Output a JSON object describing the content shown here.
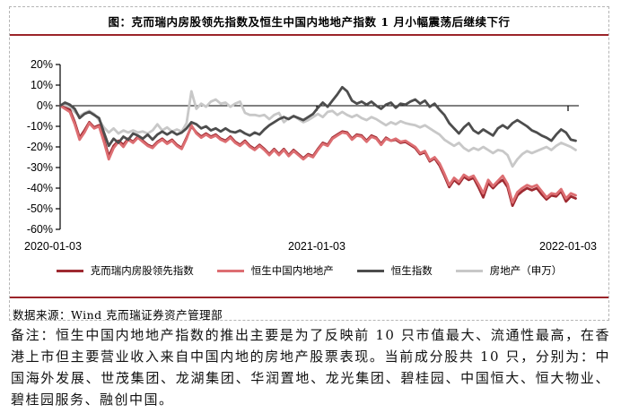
{
  "title": "图：克而瑞内房股领先指数及恒生中国内地地产指数 1 月小幅震荡后继续下行",
  "source_line": "数据来源：Wind 克而瑞证券资产管理部",
  "notes": "备注：恒生中国内地地产指数的推出主要是为了反映前 10 只市值最大、流通性最高，在香港上市但主要营业收入来自中国内地的房地产股票表现。当前成分股共 10 只，分别为：中国海外发展、世茂集团、龙湖集团、华润置地、龙光集团、碧桂园、中国恒大、恒大物业、碧桂园服务、融创中国。",
  "colors": {
    "accent_rule": "#9b2429",
    "cric_red": "#9e2a31",
    "hs_mainland_pink": "#dd6e72",
    "hsi_gray": "#4d4d4d",
    "sw_lightgray": "#c8c8c8",
    "axis": "#000000",
    "border_dashed": "#b5b5b5"
  },
  "chart_data": {
    "type": "line",
    "frequency": "weekly",
    "x_start": "2020-01-03",
    "x_end": "2022-01-03",
    "x_tick_labels": [
      "2020-01-03",
      "2021-01-03",
      "2022-01-03"
    ],
    "y_tick_labels": [
      "20%",
      "10%",
      "0%",
      "-10%",
      "-20%",
      "-30%",
      "-40%",
      "-50%",
      "-60%"
    ],
    "ylim": [
      -60,
      20
    ],
    "y_unit": "%",
    "grid": false,
    "legend_position": "bottom",
    "series": [
      {
        "name": "克而瑞内房股领先指数",
        "color": "#9e2a31",
        "values": [
          0,
          -1,
          -2,
          -8,
          -15.5,
          -12,
          -8,
          -10.5,
          -9.5,
          -16.5,
          -24.5,
          -19.5,
          -17,
          -19,
          -16,
          -17.5,
          -15,
          -17,
          -19,
          -20,
          -17.5,
          -16,
          -18,
          -16.5,
          -19,
          -20.5,
          -15.5,
          -10,
          -13,
          -15,
          -13.5,
          -15,
          -14,
          -16,
          -17,
          -15,
          -17.5,
          -19,
          -17,
          -19.5,
          -21,
          -19,
          -21,
          -23.5,
          -21,
          -23.5,
          -21,
          -24,
          -21.5,
          -23.5,
          -25.5,
          -23.5,
          -24.5,
          -21,
          -18,
          -19,
          -15.5,
          -14,
          -12.5,
          -13,
          -16,
          -14,
          -14.5,
          -17,
          -14.5,
          -15.5,
          -18.5,
          -15.5,
          -17,
          -16.5,
          -18,
          -17.5,
          -19,
          -20.5,
          -23.5,
          -22.5,
          -27,
          -25.5,
          -29,
          -34,
          -39.5,
          -36,
          -38,
          -34.5,
          -36,
          -35,
          -39.5,
          -44.5,
          -37.5,
          -40,
          -37.5,
          -36,
          -39.5,
          -48.5,
          -43.5,
          -41.5,
          -40,
          -41,
          -40,
          -43,
          -45.5,
          -43.5,
          -44,
          -41.5,
          -46.5,
          -44,
          -45
        ]
      },
      {
        "name": "恒生中国内地地产",
        "color": "#dd6e72",
        "values": [
          0,
          -1.5,
          -3,
          -9,
          -16.5,
          -13,
          -8.5,
          -11,
          -10,
          -17.5,
          -26,
          -20.5,
          -17.5,
          -20,
          -16.5,
          -18,
          -15.5,
          -17.5,
          -19.5,
          -20.5,
          -18,
          -16.5,
          -18.5,
          -17,
          -19.5,
          -21,
          -16,
          -9.5,
          -13.5,
          -15.5,
          -14,
          -15.5,
          -14.5,
          -16.5,
          -17.5,
          -15.5,
          -18,
          -19.5,
          -17.5,
          -20,
          -21.5,
          -19.5,
          -21.5,
          -24,
          -21.5,
          -24,
          -21.5,
          -24.5,
          -22,
          -24,
          -26,
          -24,
          -25,
          -21.5,
          -18.5,
          -19.5,
          -16,
          -14.5,
          -13,
          -13.5,
          -16.5,
          -14.5,
          -15,
          -17.5,
          -15,
          -16,
          -19,
          -16,
          -17,
          -16,
          -17.5,
          -17,
          -18.5,
          -20,
          -23,
          -22,
          -26.5,
          -25,
          -28,
          -33,
          -38.5,
          -35,
          -37,
          -33.5,
          -35,
          -34,
          -38,
          -42.5,
          -36,
          -39,
          -36.5,
          -34,
          -38,
          -47,
          -42,
          -40,
          -38.5,
          -39.5,
          -38.5,
          -41.5,
          -44.5,
          -42.5,
          -43,
          -40.5,
          -45,
          -42.5,
          -43.5
        ]
      },
      {
        "name": "恒生指数",
        "color": "#4d4d4d",
        "values": [
          0,
          1.5,
          0.5,
          -1.5,
          -6,
          -4,
          -3,
          -4.5,
          -6,
          -13,
          -19.5,
          -16,
          -18,
          -15,
          -16.5,
          -13.5,
          -14.5,
          -16,
          -14,
          -16.5,
          -14,
          -12.5,
          -14,
          -12.5,
          -14,
          -13,
          -11,
          -8,
          -9,
          -11,
          -10,
          -12,
          -11,
          -12.5,
          -11,
          -12.5,
          -13,
          -12,
          -13.5,
          -14.5,
          -13,
          -14,
          -11.5,
          -9.5,
          -8,
          -6.5,
          -5.5,
          -6.5,
          -5,
          -6,
          -7,
          -5.5,
          -4,
          -1,
          1.5,
          -0.5,
          2.5,
          5.5,
          9,
          7,
          2.5,
          1,
          2,
          0.5,
          2,
          0,
          -1.5,
          0.5,
          1.5,
          -1,
          1,
          0.5,
          2,
          3,
          1,
          2.5,
          -0.5,
          1,
          -2,
          -4.5,
          -8.5,
          -11,
          -13.5,
          -10.5,
          -8.5,
          -12,
          -13.5,
          -11.5,
          -13,
          -14.5,
          -11,
          -9.5,
          -11,
          -8.5,
          -7,
          -8.5,
          -10,
          -12,
          -13,
          -14.5,
          -15.5,
          -17,
          -14,
          -11.5,
          -13,
          -16.5,
          -17
        ]
      },
      {
        "name": "房地产（申万）",
        "color": "#c8c8c8",
        "values": [
          0,
          0.5,
          -1,
          -3,
          -5,
          -3.5,
          -2.5,
          -4,
          -7,
          -10.5,
          -13,
          -11,
          -13.5,
          -12,
          -13,
          -12,
          -13,
          -12.5,
          -13.5,
          -12,
          -9,
          -12,
          -10.5,
          -12.5,
          -11.5,
          -12.5,
          -8.5,
          7,
          -1.5,
          1,
          -0.5,
          2,
          3,
          1,
          1.5,
          -0.5,
          1,
          2,
          -3.5,
          -4.5,
          -4.5,
          -5,
          -4.5,
          -6.5,
          -4.5,
          -3.5,
          -8,
          -6,
          -5,
          -6.5,
          -8,
          -7,
          -5.5,
          -4,
          -5.5,
          -3,
          -2.5,
          -4.5,
          -3,
          -4.5,
          -5.5,
          -4.5,
          -6,
          -7,
          -5.5,
          -6.5,
          -8,
          -9.5,
          -8,
          -9,
          -7.5,
          -8.5,
          -9,
          -9.5,
          -10.5,
          -9.5,
          -11,
          -12.5,
          -14,
          -16.5,
          -18,
          -19.5,
          -18,
          -20.5,
          -22,
          -20.5,
          -21.5,
          -20,
          -21.5,
          -23,
          -21.5,
          -22,
          -24,
          -29.5,
          -26,
          -23.5,
          -22,
          -23,
          -22,
          -21,
          -20,
          -21.5,
          -19.5,
          -18,
          -19,
          -20,
          -21.5
        ]
      }
    ]
  }
}
